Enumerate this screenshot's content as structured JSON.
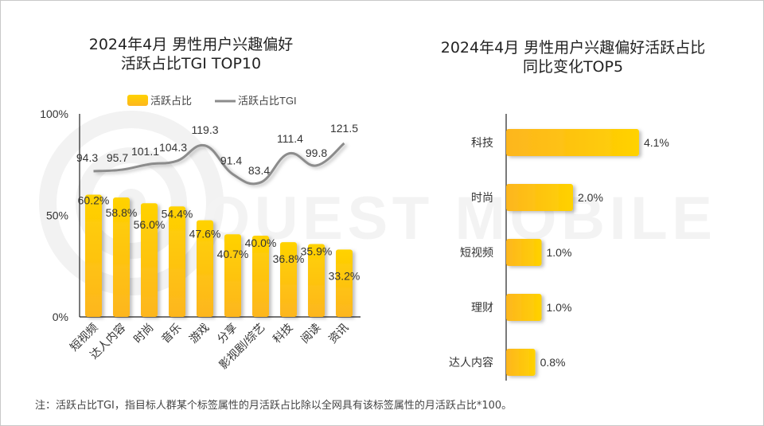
{
  "watermark": "QUEST MOBILE",
  "colors": {
    "bar_top": "#ffd200",
    "bar_bottom": "#fdb61f",
    "line": "#8c8c8c",
    "axis": "#222222",
    "text": "#333333"
  },
  "note": "注：活跃占比TGI，指目标人群某个标签属性的月活跃占比除以全网具有该标签属性的月活跃占比*100。",
  "chart_data": [
    {
      "type": "bar+line",
      "title_line1": "2024年4月 男性用户兴趣偏好",
      "title_line2": "活跃占比TGI TOP10",
      "legend": {
        "position": "top",
        "items": [
          "活跃占比",
          "活跃占比TGI"
        ]
      },
      "yticks": [
        "100%",
        "50%",
        "0%"
      ],
      "ylim": [
        0,
        100
      ],
      "categories": [
        "短视频",
        "达人内容",
        "时尚",
        "音乐",
        "游戏",
        "分享",
        "影视剧/综艺",
        "科技",
        "阅读",
        "资讯"
      ],
      "series": [
        {
          "name": "活跃占比",
          "type": "bar",
          "values": [
            60.2,
            58.8,
            56.0,
            54.4,
            47.6,
            40.7,
            40.0,
            36.8,
            35.9,
            33.2
          ],
          "labels": [
            "60.2%",
            "58.8%",
            "56.0%",
            "54.4%",
            "47.6%",
            "40.7%",
            "40.0%",
            "36.8%",
            "35.9%",
            "33.2%"
          ]
        },
        {
          "name": "活跃占比TGI",
          "type": "line",
          "values": [
            94.3,
            95.7,
            101.1,
            104.3,
            119.3,
            91.4,
            83.4,
            111.4,
            99.8,
            121.5
          ],
          "labels": [
            "94.3",
            "95.7",
            "101.1",
            "104.3",
            "119.3",
            "91.4",
            "83.4",
            "111.4",
            "99.8",
            "121.5"
          ]
        }
      ]
    },
    {
      "type": "bar",
      "orientation": "horizontal",
      "title_line1": "2024年4月 男性用户兴趣偏好活跃占比",
      "title_line2": "同比变化TOP5",
      "categories": [
        "科技",
        "时尚",
        "短视频",
        "理财",
        "达人内容"
      ],
      "values": [
        4.1,
        2.0,
        1.0,
        1.0,
        0.8
      ],
      "labels": [
        "4.1%",
        "2.0%",
        "1.0%",
        "1.0%",
        "0.8%"
      ]
    }
  ]
}
